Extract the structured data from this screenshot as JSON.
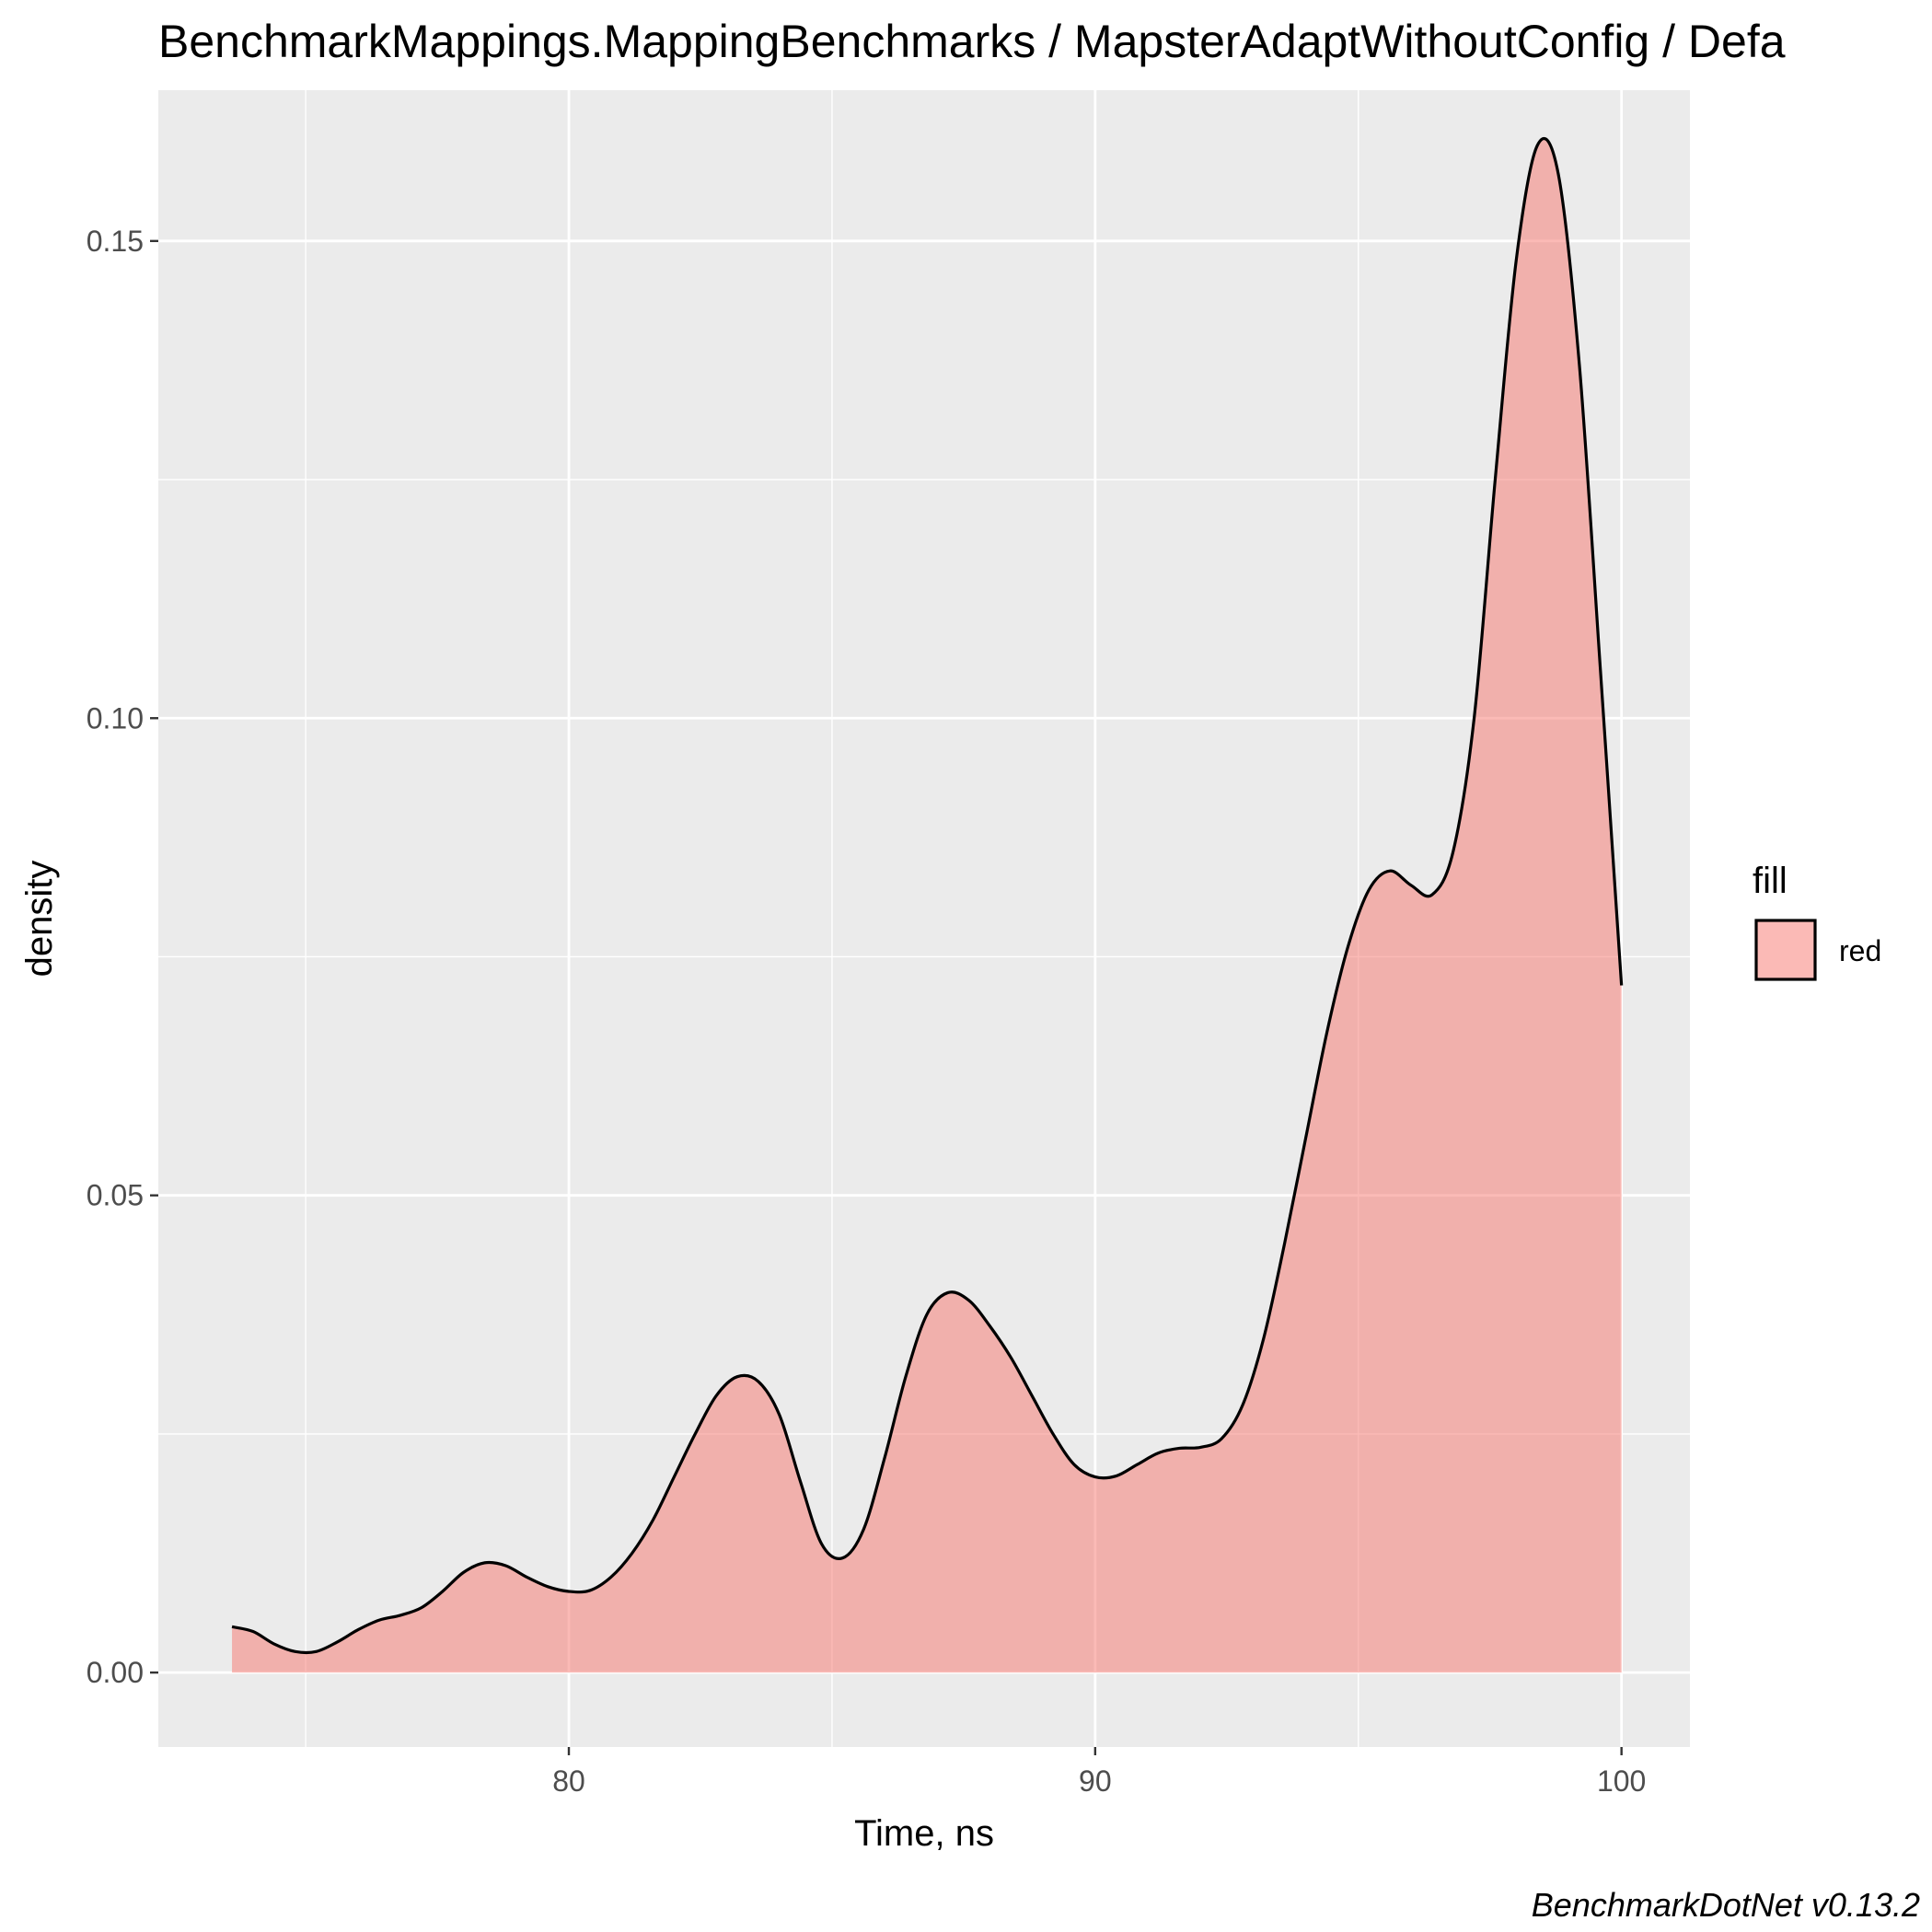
{
  "chart_data": {
    "type": "area",
    "title": "BenchmarkMappings.MappingBenchmarks / MapsterAdaptWithoutConfig / Defa",
    "xlabel": "Time, ns",
    "ylabel": "density",
    "caption": "BenchmarkDotNet v0.13.2",
    "xlim": [
      72.2,
      101.3
    ],
    "ylim": [
      -0.0078,
      0.1658
    ],
    "x_ticks": [
      80,
      90,
      100
    ],
    "x_tick_labels": [
      "80",
      "90",
      "100"
    ],
    "y_ticks": [
      0.0,
      0.05,
      0.1,
      0.15
    ],
    "y_tick_labels": [
      "0.00",
      "0.05",
      "0.10",
      "0.15"
    ],
    "grid": true,
    "legend": {
      "title": "fill",
      "entries": [
        "red"
      ],
      "position": "right"
    },
    "fill_color": "#f8766d",
    "fill_opacity": 0.5,
    "line_color": "#000000",
    "panel_background": "#ebebeb",
    "series": [
      {
        "x": [
          73.6,
          74.0,
          74.4,
          74.8,
          75.2,
          75.6,
          76.0,
          76.4,
          76.8,
          77.2,
          77.6,
          78.0,
          78.4,
          78.8,
          79.2,
          79.6,
          80.0,
          80.4,
          80.8,
          81.2,
          81.6,
          82.0,
          82.4,
          82.8,
          83.2,
          83.6,
          84.0,
          84.4,
          84.8,
          85.2,
          85.6,
          86.0,
          86.4,
          86.8,
          87.2,
          87.6,
          88.0,
          88.4,
          88.8,
          89.2,
          89.6,
          90.0,
          90.4,
          90.8,
          91.2,
          91.6,
          92.0,
          92.4,
          92.8,
          93.2,
          93.6,
          94.0,
          94.4,
          94.8,
          95.2,
          95.6,
          96.0,
          96.4,
          96.8,
          97.2,
          97.6,
          98.0,
          98.4,
          98.8,
          99.2,
          99.6,
          100.0
        ],
        "y": [
          0.0048,
          0.0043,
          0.003,
          0.0022,
          0.0022,
          0.0032,
          0.0045,
          0.0055,
          0.006,
          0.0068,
          0.0085,
          0.0105,
          0.0115,
          0.0112,
          0.01,
          0.009,
          0.0085,
          0.0086,
          0.01,
          0.0125,
          0.016,
          0.0205,
          0.025,
          0.029,
          0.031,
          0.0305,
          0.027,
          0.02,
          0.0135,
          0.012,
          0.015,
          0.0225,
          0.031,
          0.0375,
          0.0398,
          0.039,
          0.0363,
          0.033,
          0.029,
          0.025,
          0.0218,
          0.0205,
          0.0206,
          0.0218,
          0.023,
          0.0235,
          0.0236,
          0.0245,
          0.028,
          0.035,
          0.045,
          0.056,
          0.067,
          0.076,
          0.082,
          0.084,
          0.0825,
          0.0815,
          0.086,
          0.1,
          0.125,
          0.148,
          0.16,
          0.157,
          0.137,
          0.105,
          0.072
        ]
      }
    ]
  }
}
